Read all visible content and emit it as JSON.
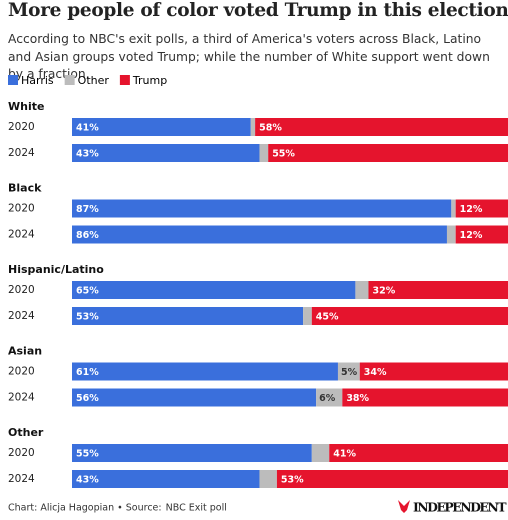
{
  "chart_data": {
    "type": "bar",
    "orientation": "horizontal",
    "stacked": true,
    "title": "More people of color voted Trump in this election",
    "subtitle": "According to NBC's exit polls, a third of America's voters across Black, Latino and Asian groups voted Trump; while the number of White support went down by a fraction.",
    "groups": [
      "White",
      "Black",
      "Hispanic/Latino",
      "Asian",
      "Other"
    ],
    "categories": [
      "2020",
      "2024",
      "2020",
      "2024",
      "2020",
      "2024",
      "2020",
      "2024",
      "2020",
      "2024"
    ],
    "xlim": [
      0,
      100
    ],
    "series": [
      {
        "name": "Harris",
        "color": "#3a6fdc",
        "values": [
          41,
          43,
          87,
          86,
          65,
          53,
          61,
          56,
          55,
          43
        ],
        "value_labels": [
          "41%",
          "43%",
          "87%",
          "86%",
          "65%",
          "53%",
          "61%",
          "56%",
          "55%",
          "43%"
        ]
      },
      {
        "name": "Other",
        "color": "#bcbcbc",
        "values": [
          1,
          2,
          1,
          2,
          3,
          2,
          5,
          6,
          4,
          4
        ],
        "value_labels": [
          null,
          null,
          null,
          null,
          null,
          null,
          "5%",
          "6%",
          null,
          null
        ]
      },
      {
        "name": "Trump",
        "color": "#e5142d",
        "values": [
          58,
          55,
          12,
          12,
          32,
          45,
          34,
          38,
          41,
          53
        ],
        "value_labels": [
          "58%",
          "55%",
          "12%",
          "12%",
          "32%",
          "45%",
          "34%",
          "38%",
          "41%",
          "53%"
        ]
      }
    ],
    "credit": "Chart: Alicja Hagopian • Source:",
    "source": "NBC Exit poll",
    "publisher": "INDEPENDENT"
  }
}
